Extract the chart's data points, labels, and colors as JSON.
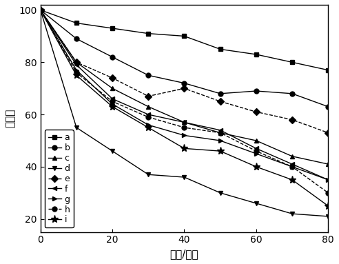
{
  "title": "",
  "xlabel": "时间/分钟",
  "ylabel": "降解率",
  "xlim": [
    0,
    80
  ],
  "ylim": [
    15,
    102
  ],
  "yticks": [
    20,
    40,
    60,
    80,
    100
  ],
  "xticks": [
    0,
    20,
    40,
    60,
    80
  ],
  "series": [
    {
      "label": "a",
      "marker": "s",
      "linestyle": "-",
      "x": [
        0,
        10,
        20,
        30,
        40,
        50,
        60,
        70,
        80
      ],
      "y": [
        100,
        95,
        93,
        91,
        90,
        85,
        83,
        80,
        77
      ]
    },
    {
      "label": "b",
      "marker": "o",
      "linestyle": "-",
      "x": [
        0,
        10,
        20,
        30,
        40,
        50,
        60,
        70,
        80
      ],
      "y": [
        100,
        89,
        82,
        75,
        72,
        68,
        69,
        68,
        63
      ]
    },
    {
      "label": "c",
      "marker": "^",
      "linestyle": "-",
      "x": [
        0,
        10,
        20,
        30,
        40,
        50,
        60,
        70,
        80
      ],
      "y": [
        100,
        80,
        70,
        63,
        57,
        53,
        50,
        44,
        41
      ]
    },
    {
      "label": "d",
      "marker": "v",
      "linestyle": "-",
      "x": [
        0,
        10,
        20,
        30,
        40,
        50,
        60,
        70,
        80
      ],
      "y": [
        100,
        55,
        46,
        37,
        36,
        30,
        26,
        22,
        21
      ]
    },
    {
      "label": "e",
      "marker": "D",
      "linestyle": "--",
      "x": [
        0,
        10,
        20,
        30,
        40,
        50,
        60,
        70,
        80
      ],
      "y": [
        100,
        80,
        74,
        67,
        70,
        65,
        61,
        58,
        53
      ]
    },
    {
      "label": "f",
      "marker": "<",
      "linestyle": "-",
      "x": [
        0,
        10,
        20,
        30,
        40,
        50,
        60,
        70,
        80
      ],
      "y": [
        100,
        79,
        66,
        60,
        57,
        54,
        47,
        41,
        35
      ]
    },
    {
      "label": "g",
      "marker": ">",
      "linestyle": "-",
      "x": [
        0,
        10,
        20,
        30,
        40,
        50,
        60,
        70,
        80
      ],
      "y": [
        100,
        77,
        64,
        56,
        52,
        50,
        45,
        40,
        35
      ]
    },
    {
      "label": "h",
      "marker": "o",
      "linestyle": "--",
      "x": [
        0,
        10,
        20,
        30,
        40,
        50,
        60,
        70,
        80
      ],
      "y": [
        100,
        76,
        65,
        59,
        55,
        53,
        46,
        40,
        30
      ]
    },
    {
      "label": "i",
      "marker": "*",
      "linestyle": "-",
      "x": [
        0,
        10,
        20,
        30,
        40,
        50,
        60,
        70,
        80
      ],
      "y": [
        100,
        75,
        63,
        55,
        47,
        46,
        40,
        35,
        25
      ]
    }
  ],
  "color": "black",
  "markersize": 5,
  "linewidth": 1.0,
  "legend_fontsize": 9,
  "axis_fontsize": 11,
  "tick_fontsize": 10
}
